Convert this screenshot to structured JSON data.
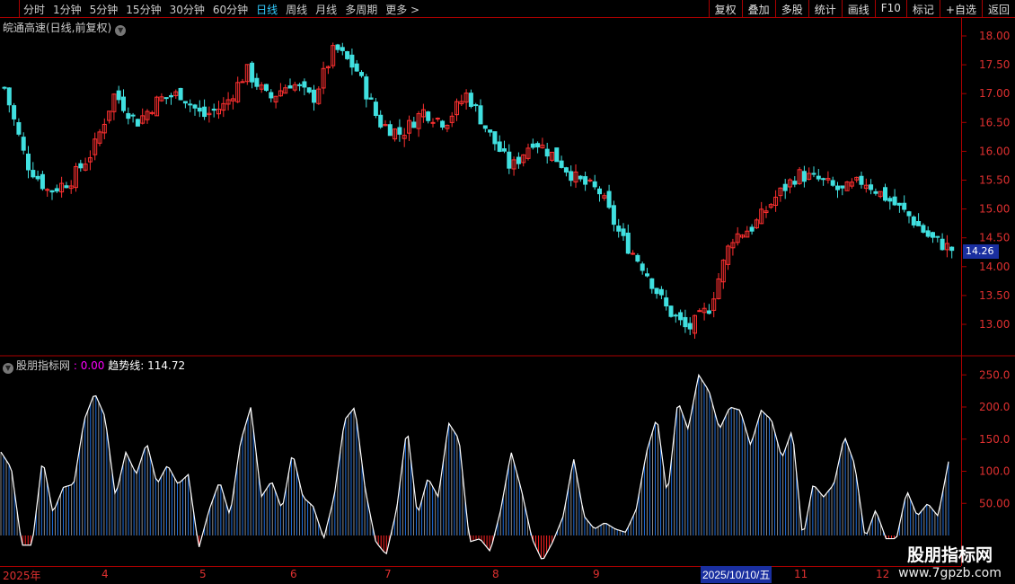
{
  "toolbar": {
    "periods": [
      "分时",
      "1分钟",
      "5分钟",
      "15分钟",
      "30分钟",
      "60分钟",
      "日线",
      "周线",
      "月线",
      "多周期",
      "更多 >"
    ],
    "active": "日线",
    "buttons": [
      "复权",
      "叠加",
      "多股",
      "统计",
      "画线",
      "F10",
      "标记",
      "+自选",
      "返回"
    ]
  },
  "stock": {
    "title": "皖通高速(日线,前复权)",
    "last_price": "14.26"
  },
  "indicator": {
    "name": "股朋指标网",
    "value_label": ": 0.00",
    "trend_label": "趋势线: 114.72"
  },
  "colors": {
    "up": "#ff3030",
    "down": "#40e0e0",
    "bar": "#1e6fe0",
    "line": "#ffffff",
    "neg": "#ff2020",
    "axis": "#aa0000"
  },
  "price_axis": {
    "ticks": [
      "18.00",
      "17.50",
      "17.00",
      "16.50",
      "16.00",
      "15.50",
      "15.00",
      "14.50",
      "14.00",
      "13.50",
      "13.00"
    ]
  },
  "indicator_axis": {
    "ticks": [
      "250.0",
      "200.0",
      "150.0",
      "100.0",
      "50.00"
    ]
  },
  "dates": {
    "labels": [
      "2025年",
      "4",
      "5",
      "6",
      "7",
      "8",
      "9",
      "11",
      "12"
    ],
    "selected": "2025/10/10/五"
  },
  "watermark": {
    "name": "股朋指标网",
    "url": "www.7gpzb.com"
  },
  "chart_data": [
    {
      "type": "candlestick",
      "ylim": [
        12.8,
        18.1
      ],
      "closes_by_month_approx": [
        17.1,
        15.8,
        15.3,
        15.5,
        16.0,
        17.0,
        16.5,
        16.9,
        17.0,
        16.6,
        16.8,
        17.4,
        16.9,
        17.2,
        16.9,
        17.8,
        17.4,
        16.5,
        16.3,
        16.7,
        16.5,
        17.0,
        16.3,
        15.7,
        16.2,
        15.9,
        15.5,
        15.3,
        14.5,
        14.0,
        13.3,
        12.9,
        13.3,
        14.5,
        14.7,
        15.2,
        15.6,
        15.5,
        15.3,
        15.5,
        15.2,
        14.9,
        14.5,
        14.3
      ]
    },
    {
      "type": "bar",
      "ylim": [
        -50,
        260
      ],
      "values": [
        130,
        105,
        -15,
        -15,
        120,
        35,
        75,
        80,
        180,
        222,
        185,
        60,
        130,
        95,
        145,
        80,
        110,
        80,
        95,
        -20,
        40,
        85,
        30,
        145,
        200,
        60,
        85,
        40,
        130,
        60,
        45,
        -5,
        60,
        180,
        200,
        70,
        -10,
        -30,
        40,
        170,
        30,
        90,
        60,
        175,
        150,
        -10,
        -5,
        -25,
        40,
        130,
        70,
        -5,
        -40,
        -10,
        30,
        120,
        30,
        10,
        20,
        10,
        5,
        40,
        130,
        185,
        60,
        210,
        165,
        250,
        225,
        165,
        200,
        195,
        140,
        195,
        180,
        120,
        165,
        -5,
        80,
        60,
        80,
        155,
        110,
        -5,
        40,
        -5,
        -5,
        70,
        30,
        50,
        30,
        115
      ]
    }
  ]
}
